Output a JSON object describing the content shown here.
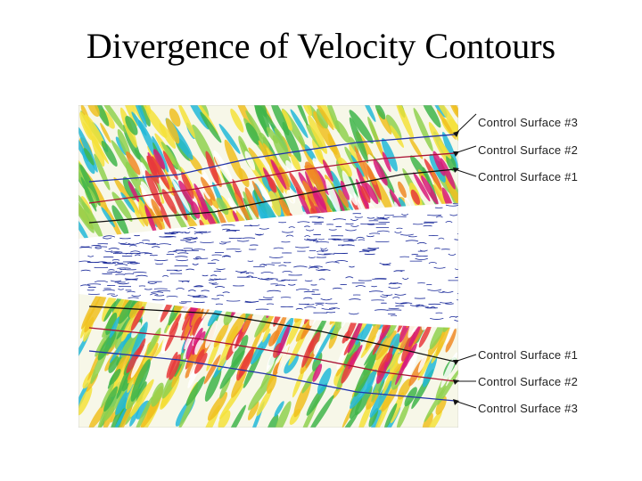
{
  "slide": {
    "title": "Divergence of Velocity Contours"
  },
  "figure": {
    "description_icon": "contour-plot-icon",
    "upper_labels": [
      "Control Surface #3",
      "Control Surface #2",
      "Control Surface #1"
    ],
    "lower_labels": [
      "Control Surface #1",
      "Control Surface #2",
      "Control Surface #3"
    ],
    "colors": {
      "jet_core": "#1a2a9a",
      "line_blue": "#2233aa",
      "line_red": "#aa1133",
      "line_black": "#111111"
    }
  }
}
